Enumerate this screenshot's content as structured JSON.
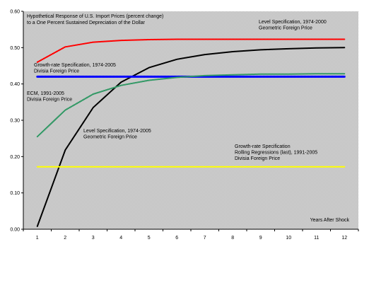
{
  "chart_data": {
    "type": "line",
    "title_lines": [
      "Hypothetical Response of U.S. Import Prices (percent change)",
      "to a One Percent Sustained Depreciation of the Dollar"
    ],
    "xlabel": "Years After Shock",
    "ylabel": "",
    "x": [
      1,
      2,
      3,
      4,
      5,
      6,
      7,
      8,
      9,
      10,
      11,
      12
    ],
    "ylim": [
      0,
      0.6
    ],
    "y_ticks": [
      "0.00",
      "0.10",
      "0.20",
      "0.30",
      "0.40",
      "0.50",
      "0.60"
    ],
    "x_ticks": [
      "1",
      "2",
      "3",
      "4",
      "5",
      "6",
      "7",
      "8",
      "9",
      "10",
      "11",
      "12"
    ],
    "grid": false,
    "series": [
      {
        "key": "level_1974_2000",
        "color": "#ff0000",
        "values": [
          0.46,
          0.502,
          0.515,
          0.52,
          0.522,
          0.523,
          0.523,
          0.523,
          0.523,
          0.523,
          0.523,
          0.523
        ]
      },
      {
        "key": "level_1974_2005",
        "color": "#000000",
        "values": [
          0.008,
          0.218,
          0.335,
          0.405,
          0.445,
          0.468,
          0.481,
          0.489,
          0.494,
          0.497,
          0.499,
          0.5
        ]
      },
      {
        "key": "growth_rate_1974_2005",
        "color": "#0000ff",
        "values": [
          0.42,
          0.42,
          0.42,
          0.42,
          0.42,
          0.42,
          0.42,
          0.42,
          0.42,
          0.42,
          0.42,
          0.42
        ]
      },
      {
        "key": "ecm_1991_2005",
        "color": "#339966",
        "values": [
          0.255,
          0.328,
          0.372,
          0.396,
          0.41,
          0.418,
          0.423,
          0.425,
          0.427,
          0.427,
          0.428,
          0.428
        ]
      },
      {
        "key": "rolling_1991_2005",
        "color": "#ffff00",
        "values": [
          0.172,
          0.172,
          0.172,
          0.172,
          0.172,
          0.172,
          0.172,
          0.172,
          0.172,
          0.172,
          0.172,
          0.172
        ]
      }
    ],
    "annotations": [
      {
        "key": "level_1974_2000",
        "lines": [
          "Level Specification, 1974-2000",
          "Geometric Foreign Price"
        ]
      },
      {
        "key": "growth_rate_1974_2005",
        "lines": [
          "Growth-rate Specification, 1974-2005",
          "Divisia Foreign Price"
        ]
      },
      {
        "key": "ecm_1991_2005",
        "lines": [
          "ECM, 1991-2005",
          "Divisia Foreign Price"
        ]
      },
      {
        "key": "level_1974_2005",
        "lines": [
          "Level Specification, 1974-2005",
          "Geometric Foreign Price"
        ]
      },
      {
        "key": "rolling_1991_2005",
        "lines": [
          "Growth-rate Specification",
          "Rolling Regressions (last), 1991-2005",
          "Divisia Foreign Price"
        ]
      }
    ],
    "colors": {
      "plot_background": "#d4d4d4",
      "axis": "#000000"
    }
  }
}
